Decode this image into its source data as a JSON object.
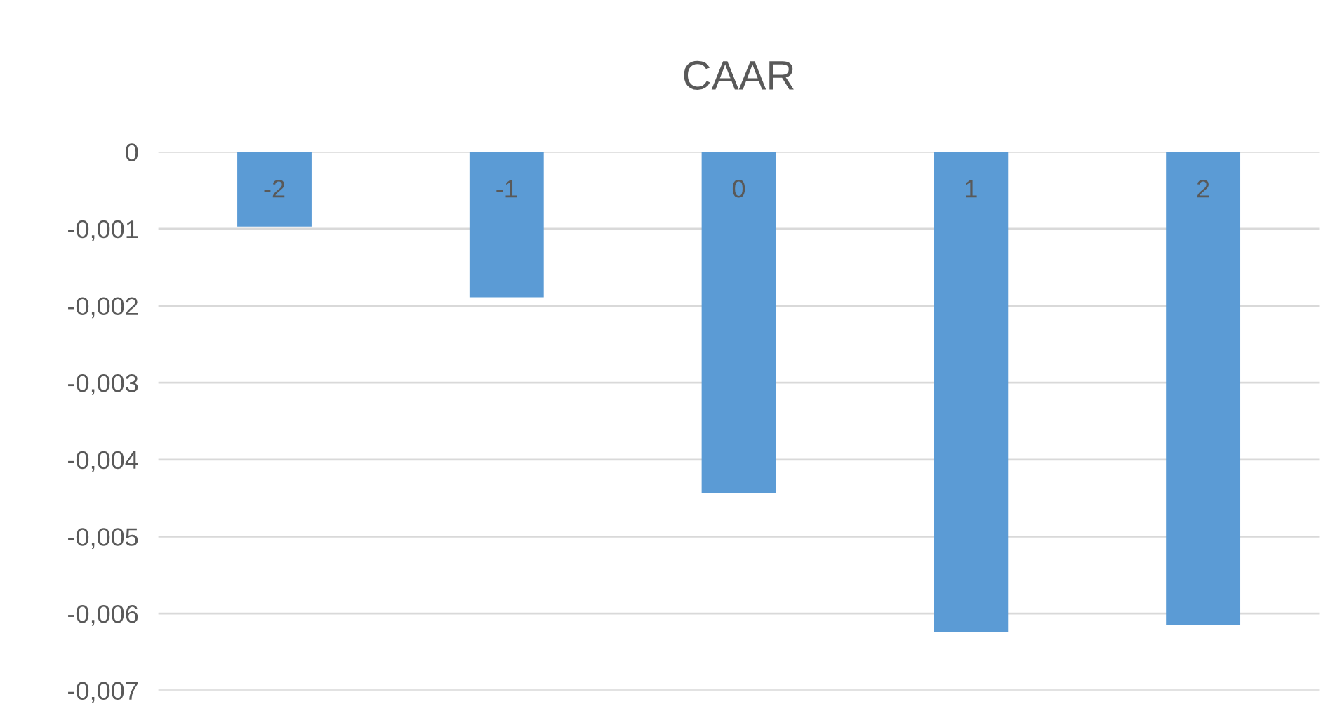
{
  "chart_data": {
    "type": "bar",
    "title": "CAAR",
    "categories": [
      "-2",
      "-1",
      "0",
      "1",
      "2"
    ],
    "values": [
      -0.00097,
      -0.00189,
      -0.00443,
      -0.00624,
      -0.00615
    ],
    "color": "#5b9bd5",
    "ylim": [
      -0.007,
      0
    ],
    "yticks": [
      {
        "value": 0,
        "label": "0"
      },
      {
        "value": -0.001,
        "label": "-0,001"
      },
      {
        "value": -0.002,
        "label": "-0,002"
      },
      {
        "value": -0.003,
        "label": "-0,003"
      },
      {
        "value": -0.004,
        "label": "-0,004"
      },
      {
        "value": -0.005,
        "label": "-0,005"
      },
      {
        "value": -0.006,
        "label": "-0,006"
      },
      {
        "value": -0.007,
        "label": "-0,007"
      }
    ],
    "grid": "y"
  }
}
